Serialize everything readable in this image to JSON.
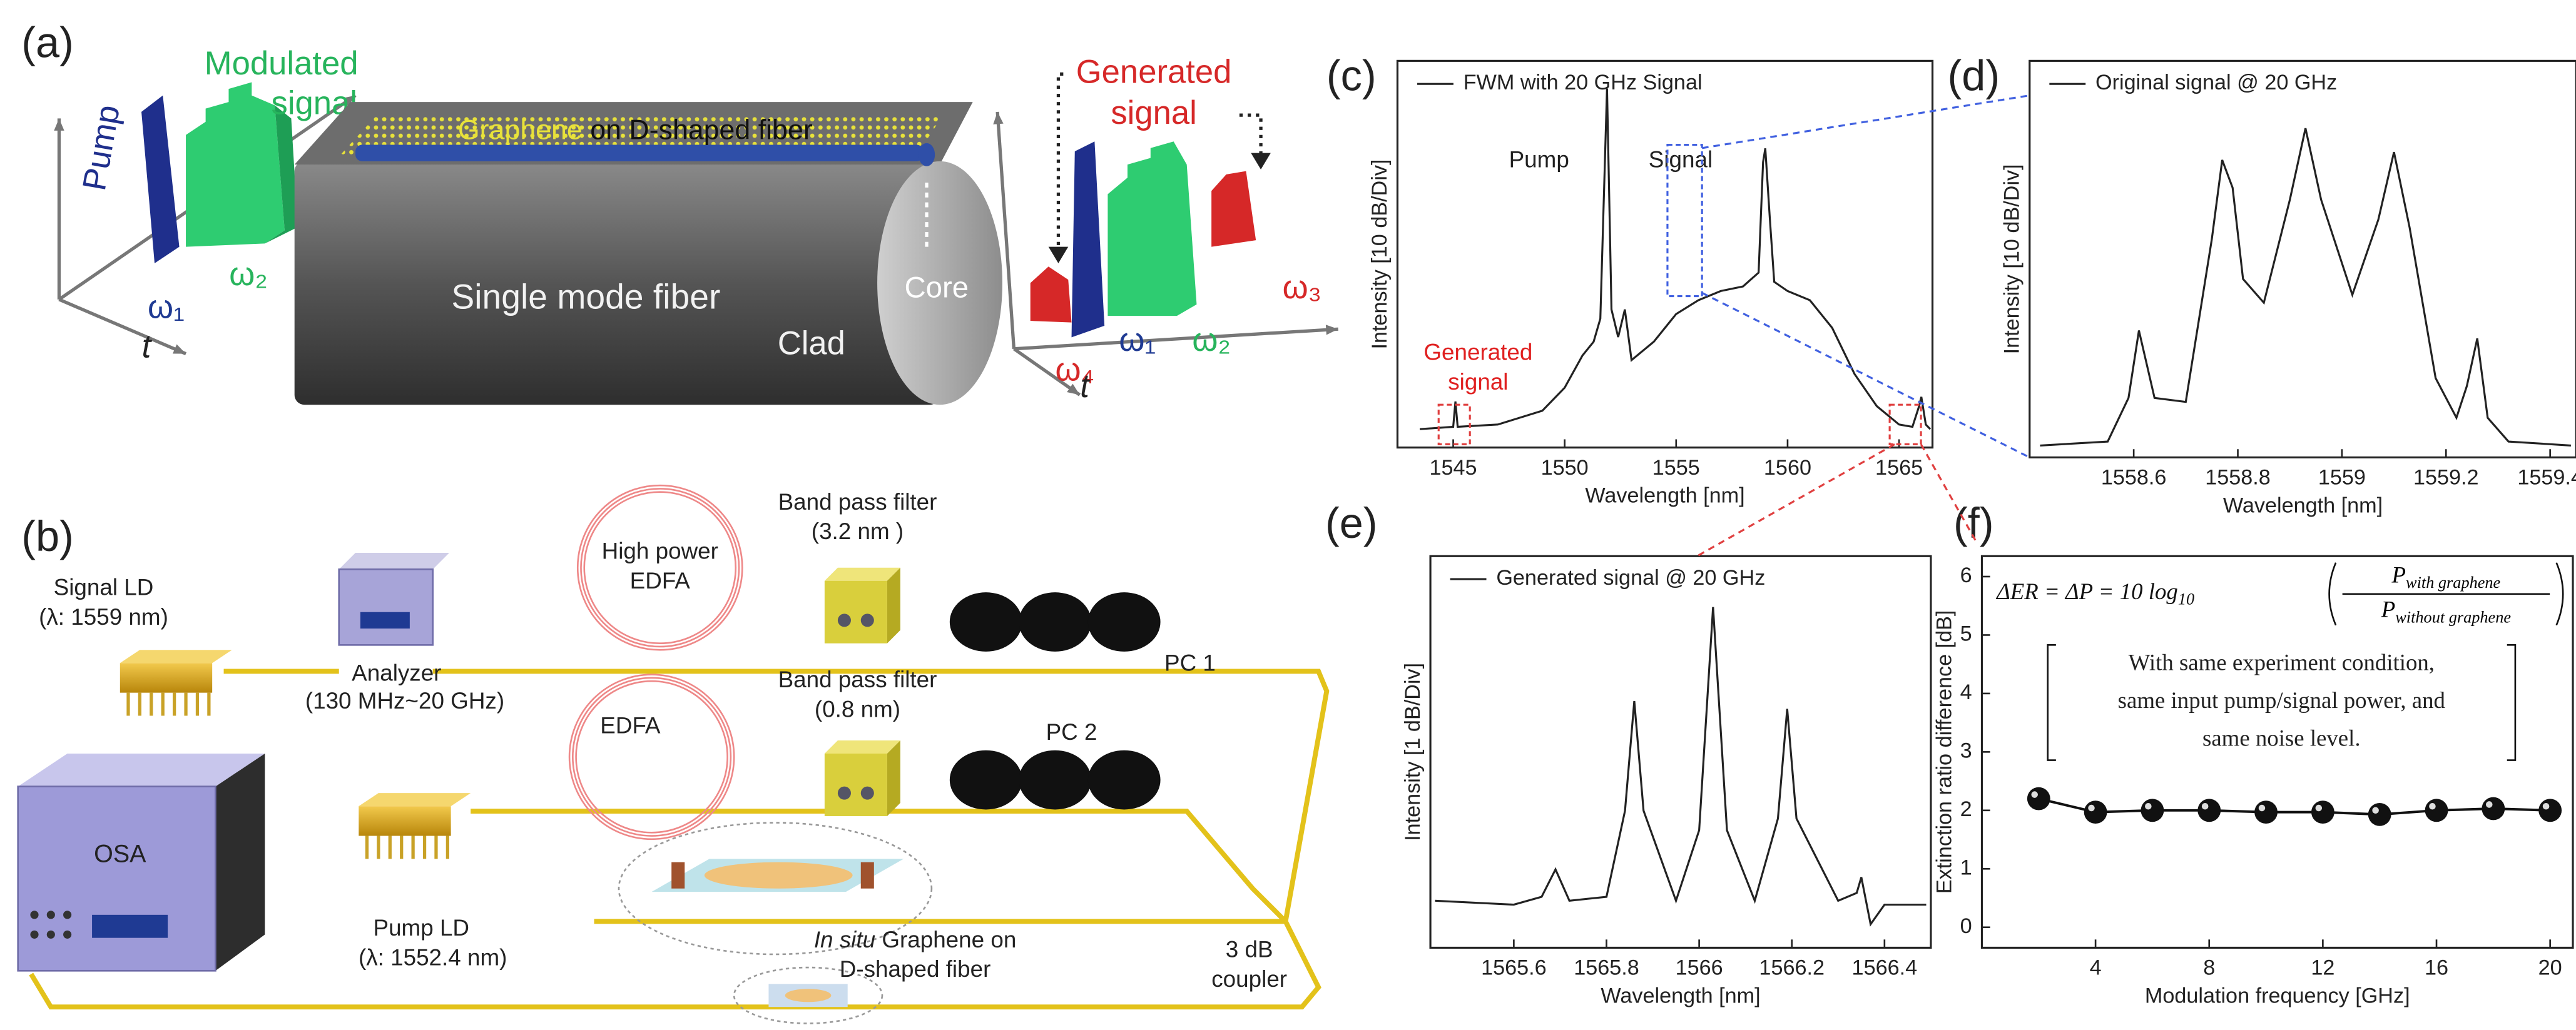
{
  "panel_labels": [
    "(a)",
    "(b)",
    "(c)",
    "(d)",
    "(e)",
    "(f)"
  ],
  "diagram_a": {
    "modulated_signal": [
      "Modulated",
      "signal"
    ],
    "pump": "Pump",
    "omega_1": "ω₁",
    "omega_2": "ω₂",
    "time_axis": "t",
    "graphene": "Graphene",
    "fiber_title_rest": " on D-shaped fiber",
    "single_mode_fiber": "Single mode fiber",
    "core": "Core",
    "clad": "Clad",
    "generated_signal": [
      "Generated",
      "signal"
    ],
    "out_omega_1": "ω₁",
    "out_omega_2": "ω₂",
    "out_omega_3": "ω₃",
    "out_omega_4": "ω₄",
    "out_time_axis": "t"
  },
  "diagram_b": {
    "signal_ld": [
      "Signal LD",
      "(λ: 1559 nm)"
    ],
    "analyzer": [
      "Analyzer",
      "(130 MHz~20 GHz)"
    ],
    "high_power_edfa": [
      "High power",
      "EDFA"
    ],
    "bpf_1": [
      "Band pass filter",
      "(3.2 nm )"
    ],
    "pc_1": "PC 1",
    "edfa": "EDFA",
    "bpf_2": [
      "Band pass filter",
      "(0.8 nm)"
    ],
    "pc_2": "PC 2",
    "osa": "OSA",
    "pump_ld": [
      "Pump LD",
      "(λ: 1552.4 nm)"
    ],
    "graphene_sample": [
      "In situ",
      " Graphene on",
      "D-shaped fiber"
    ],
    "coupler": [
      "3 dB",
      "coupler"
    ]
  },
  "chart_data": [
    {
      "type": "line",
      "xlabel": "Wavelength [nm]",
      "ylabel": "Intensity [10 dB/Div]",
      "xlim": [
        1542.5,
        1566.5
      ],
      "ylim": [
        0,
        8.4
      ],
      "xticks": [
        1545,
        1550,
        1555,
        1560,
        1565
      ],
      "annotations": [
        "Pump",
        "Signal"
      ],
      "highlight_label": [
        "Generated",
        "signal"
      ],
      "x": [
        1543.5,
        1545,
        1545.1,
        1545.2,
        1547,
        1549,
        1550,
        1550.8,
        1551.3,
        1551.6,
        1551.9,
        1552.1,
        1552.4,
        1552.7,
        1553,
        1554,
        1555,
        1556,
        1557,
        1558,
        1558.7,
        1558.9,
        1559.0,
        1559.2,
        1559.4,
        1560,
        1561,
        1562,
        1563,
        1564,
        1565,
        1565.6,
        1565.9,
        1566.0,
        1566.2,
        1566.4
      ],
      "series": [
        {
          "name": "FWM with 20 GHz Signal",
          "color": "#222222",
          "values": [
            0.4,
            0.45,
            1.0,
            0.45,
            0.5,
            0.8,
            1.3,
            2.0,
            2.3,
            2.8,
            7.8,
            3.0,
            2.4,
            3.0,
            1.9,
            2.3,
            2.9,
            3.2,
            3.4,
            3.5,
            3.8,
            6.2,
            6.5,
            5.0,
            3.6,
            3.4,
            3.2,
            2.6,
            1.6,
            0.9,
            0.5,
            0.45,
            0.9,
            1.1,
            0.5,
            0.4
          ]
        }
      ]
    },
    {
      "type": "line",
      "xlabel": "Wavelength [nm]",
      "ylabel": "Intensity [10 dB/Div]",
      "xlim": [
        1558.4,
        1559.45
      ],
      "ylim": [
        0,
        10
      ],
      "xticks": [
        1558.6,
        1558.8,
        1559.0,
        1559.2,
        1559.4
      ],
      "x": [
        1558.42,
        1558.55,
        1558.59,
        1558.61,
        1558.64,
        1558.7,
        1558.75,
        1558.77,
        1558.79,
        1558.81,
        1558.85,
        1558.9,
        1558.93,
        1558.96,
        1559.02,
        1559.07,
        1559.1,
        1559.13,
        1559.18,
        1559.22,
        1559.24,
        1559.26,
        1559.28,
        1559.32,
        1559.44
      ],
      "series": [
        {
          "name": "Original signal @ 20 GHz",
          "color": "#222222",
          "values": [
            0.3,
            0.4,
            1.5,
            3.2,
            1.5,
            1.4,
            5.5,
            7.5,
            6.8,
            4.5,
            3.9,
            6.5,
            8.3,
            6.5,
            4.1,
            6.0,
            7.7,
            5.8,
            2.0,
            1.0,
            1.8,
            3.0,
            1.0,
            0.4,
            0.3
          ]
        }
      ]
    },
    {
      "type": "line",
      "xlabel": "Wavelength [nm]",
      "ylabel": "Intensity [1 dB/Div]",
      "xlim": [
        1565.42,
        1566.5
      ],
      "ylim": [
        0,
        10
      ],
      "xticks": [
        1565.6,
        1565.8,
        1566.0,
        1566.2,
        1566.4
      ],
      "x": [
        1565.43,
        1565.6,
        1565.66,
        1565.69,
        1565.72,
        1565.8,
        1565.84,
        1565.86,
        1565.88,
        1565.95,
        1566.0,
        1566.03,
        1566.06,
        1566.12,
        1566.17,
        1566.19,
        1566.21,
        1566.3,
        1566.34,
        1566.35,
        1566.37,
        1566.4,
        1566.49
      ],
      "series": [
        {
          "name": "Generated signal @ 20 GHz",
          "color": "#222222",
          "values": [
            1.2,
            1.1,
            1.3,
            2.0,
            1.2,
            1.3,
            3.5,
            6.3,
            3.5,
            1.2,
            3.0,
            8.7,
            3.0,
            1.2,
            3.3,
            6.1,
            3.3,
            1.2,
            1.4,
            1.8,
            0.6,
            1.1,
            1.1
          ]
        }
      ]
    },
    {
      "type": "marker-line",
      "xlabel": "Modulation frequency [GHz]",
      "ylabel": "Extinction ratio difference [dB]",
      "xlim": [
        0,
        20.8
      ],
      "ylim": [
        -0.35,
        6.35
      ],
      "xticks": [
        4,
        8,
        12,
        16,
        20
      ],
      "yticks": [
        0,
        1,
        2,
        3,
        4,
        5,
        6
      ],
      "formula": {
        "lhs": "ΔER = ΔP = 10 log",
        "lhs_sub": "10",
        "num": "P",
        "num_sub": "with graphene",
        "den": "P",
        "den_sub": "without graphene"
      },
      "note": [
        "With same experiment condition,",
        "same input pump/signal power,  and",
        "same noise level."
      ],
      "x": [
        2,
        4,
        6,
        8,
        10,
        12,
        14,
        16,
        18,
        20
      ],
      "series": [
        {
          "color": "#111111",
          "values": [
            2.2,
            1.97,
            2.0,
            2.0,
            1.97,
            1.97,
            1.93,
            2.0,
            2.03,
            2.0
          ]
        }
      ]
    }
  ]
}
